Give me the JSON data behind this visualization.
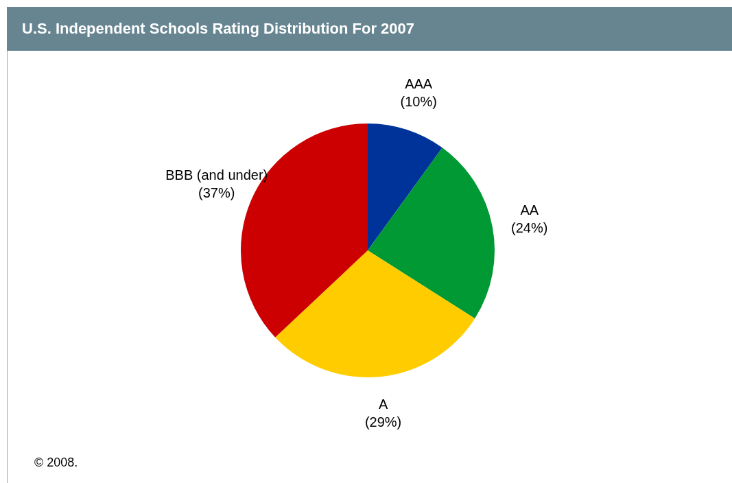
{
  "chart_data": {
    "type": "pie",
    "title": "U.S. Independent Schools Rating Distribution For 2007",
    "categories": [
      "AAA",
      "AA",
      "A",
      "BBB (and under)"
    ],
    "values": [
      10,
      24,
      29,
      37
    ],
    "value_labels": [
      "(10%)",
      "(24%)",
      "(29%)",
      "(37%)"
    ],
    "colors": [
      "#003399",
      "#009933",
      "#ffcc00",
      "#cc0000"
    ],
    "legend": false,
    "annotations": [
      "© 2008."
    ]
  }
}
